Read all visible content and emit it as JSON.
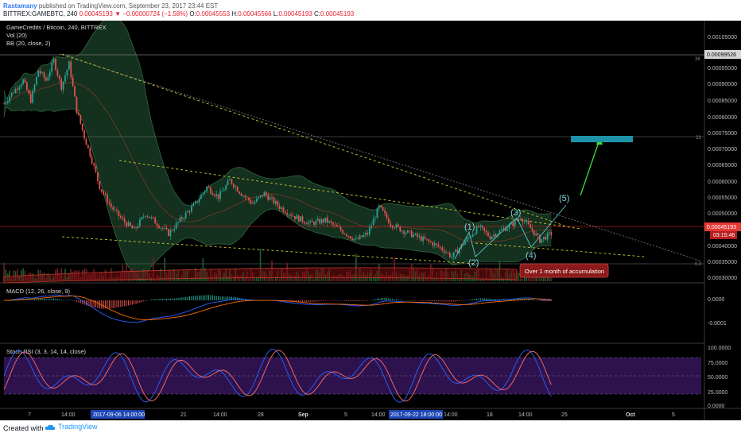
{
  "header": {
    "author": "Rastamany",
    "published": "published on TradingView.com, September 23, 2017 23:44 EST",
    "symbol": "BITTREX:GAMEBTC, 240",
    "last": "0.00045193",
    "arrow": "▼",
    "change": "−0.00000724 (−1.58%)",
    "ohlc_open_label": "O:",
    "ohlc_open": "0.00045553",
    "ohlc_high_label": "H:",
    "ohlc_high": "0.00045566",
    "ohlc_low_label": "L:",
    "ohlc_low": "0.00045193",
    "ohlc_close_label": "C:",
    "ohlc_close": "0.00045193"
  },
  "legend": {
    "title": "GameCredits / Bitcoin, 240, BITTREX",
    "vol": "Vol (20)",
    "bb": "BB (20, close, 2)",
    "macd": "MACD (12, 26, close, 9)",
    "stoch": "Stoch RSI (3, 3, 14, 14, close)"
  },
  "price_axis": {
    "ticks": [
      "0.00105000",
      "0.00095000",
      "0.00090000",
      "0.00085000",
      "0.00080000",
      "0.00075000",
      "0.00070000",
      "0.00065000",
      "0.00060000",
      "0.00055000",
      "0.00050000",
      "0.00040000",
      "0.00035000",
      "0.00030000"
    ],
    "upper_level_label": "0.00099526",
    "last_price_label": "0.00045193",
    "countdown": "03:15:46",
    "fib_labels": [
      "36",
      "23",
      "0.0"
    ]
  },
  "macd_axis": {
    "ticks": [
      "0.0000",
      "-0.0001"
    ]
  },
  "stoch_axis": {
    "ticks": [
      "100.0000",
      "75.0000",
      "50.0000",
      "25.0000",
      "0.0000"
    ]
  },
  "time_axis": {
    "labels": [
      "7",
      "14:00",
      "21",
      "14:00",
      "28",
      "Sep",
      "5",
      "14:00",
      "18",
      "14:00",
      "25",
      "Oct",
      "5"
    ],
    "highlight_start": "2017-09-06 14:00:00",
    "highlight_end": "2017-09-22 18:00:00",
    "highlight_end_tail": "14:00"
  },
  "annotations": {
    "waves": [
      "(1)",
      "(2)",
      "(3)",
      "(4)",
      "(5)"
    ],
    "accumulation": "Over 1 month of accumulation"
  },
  "colors": {
    "up_candle": "#26a69a",
    "down_candle": "#ef5350",
    "bb_fill": "#1b3b26",
    "wave_label": "#7fd6e0",
    "target_box": "#1d93a8",
    "target_arrow": "#3cdc3c",
    "stoch_band": "#3a1660",
    "background": "#000000"
  },
  "chart_data": {
    "type": "candlestick",
    "title": "GameCredits / Bitcoin, 240, BITTREX",
    "ylim": [
      0.0003,
      0.00108
    ],
    "last_price": 0.00045193,
    "target_zone": [
      0.000725,
      0.000735
    ],
    "price_path": [
      [
        0,
        0.00085
      ],
      [
        2,
        0.00088
      ],
      [
        5,
        0.00092
      ],
      [
        7,
        0.00086
      ],
      [
        9,
        0.00095
      ],
      [
        11,
        0.00092
      ],
      [
        13,
        0.00098
      ],
      [
        15,
        0.0009
      ],
      [
        17,
        0.00097
      ],
      [
        19,
        0.00083
      ],
      [
        21,
        0.00075
      ],
      [
        23,
        0.00068
      ],
      [
        25,
        0.0006
      ],
      [
        28,
        0.00054
      ],
      [
        31,
        0.0005
      ],
      [
        34,
        0.00047
      ],
      [
        37,
        0.00052
      ],
      [
        40,
        0.00049
      ],
      [
        43,
        0.00046
      ],
      [
        46,
        0.0005
      ],
      [
        50,
        0.00055
      ],
      [
        53,
        0.0006
      ],
      [
        56,
        0.00057
      ],
      [
        59,
        0.00062
      ],
      [
        62,
        0.00058
      ],
      [
        65,
        0.00055
      ],
      [
        68,
        0.00058
      ],
      [
        72,
        0.00054
      ],
      [
        76,
        0.00051
      ],
      [
        80,
        0.00049
      ],
      [
        84,
        0.0005
      ],
      [
        88,
        0.00047
      ],
      [
        92,
        0.00044
      ],
      [
        95,
        0.00046
      ],
      [
        98,
        0.00054
      ],
      [
        101,
        0.00049
      ],
      [
        104,
        0.00047
      ],
      [
        108,
        0.00045
      ],
      [
        112,
        0.00043
      ],
      [
        115,
        0.00041
      ],
      [
        117,
        0.00039
      ],
      [
        120,
        0.00043
      ],
      [
        124,
        0.00048
      ],
      [
        127,
        0.00045
      ],
      [
        130,
        0.00047
      ],
      [
        133,
        0.00049
      ],
      [
        135,
        0.00051
      ],
      [
        138,
        0.00047
      ],
      [
        140,
        0.00044
      ],
      [
        143,
        0.00046
      ]
    ],
    "x_range": [
      0,
      183
    ]
  }
}
